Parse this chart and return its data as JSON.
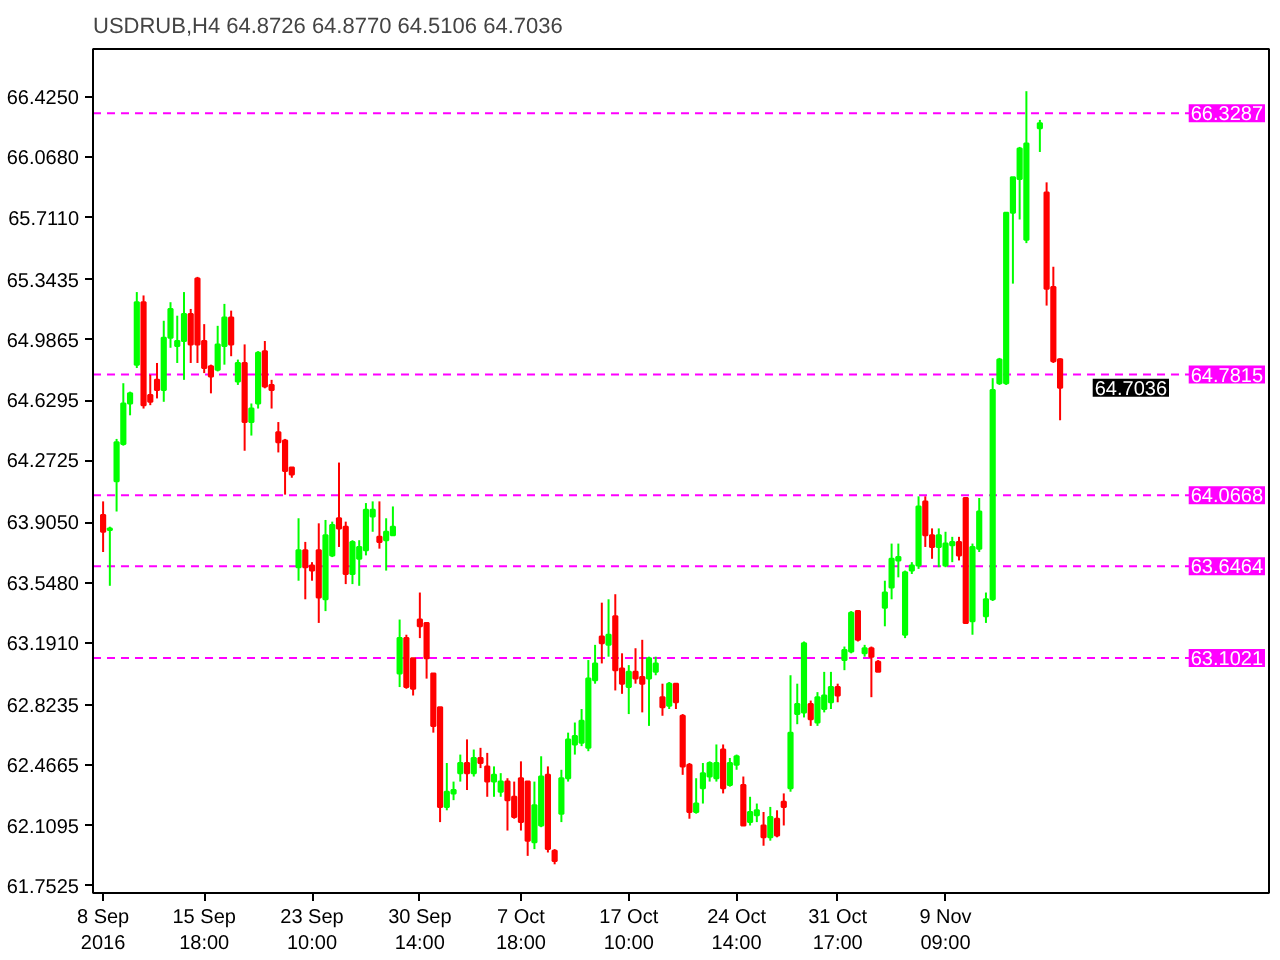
{
  "chart_data": {
    "type": "candlestick",
    "title": "USDRUB,H4 64.8726 64.8770 64.5106 64.7036",
    "categories": [
      "8 Sep 2016",
      null,
      null,
      null,
      null,
      null,
      null,
      null,
      null,
      null,
      null,
      null,
      null,
      null,
      null,
      "15 Sep 18:00",
      null,
      null,
      null,
      null,
      null,
      null,
      null,
      null,
      null,
      null,
      null,
      null,
      null,
      null,
      null,
      "23 Sep 10:00",
      null,
      null,
      null,
      null,
      null,
      null,
      null,
      null,
      null,
      null,
      null,
      null,
      null,
      null,
      null,
      "30 Sep 14:00",
      null,
      null,
      null,
      null,
      null,
      null,
      null,
      null,
      null,
      null,
      null,
      null,
      null,
      null,
      "7 Oct 18:00",
      null,
      null,
      null,
      null,
      null,
      null,
      null,
      null,
      null,
      null,
      null,
      null,
      null,
      null,
      null,
      "17 Oct 10:00",
      null,
      null,
      null,
      null,
      null,
      null,
      null,
      null,
      null,
      null,
      null,
      null,
      null,
      null,
      null,
      "24 Oct 14:00",
      null,
      null,
      null,
      null,
      null,
      null,
      null,
      null,
      null,
      null,
      null,
      null,
      null,
      null,
      "31 Oct 17:00",
      null,
      null,
      null,
      null,
      null,
      null,
      null,
      null,
      null,
      null,
      null,
      null,
      null,
      null,
      null,
      "9 Nov 09:00",
      null,
      null,
      null,
      null,
      null,
      null,
      null,
      null,
      null,
      null,
      null,
      null,
      null,
      null,
      null,
      null,
      null
    ],
    "ohlc": [
      [
        63.95,
        64.03,
        63.73,
        63.85
      ],
      [
        63.86,
        63.88,
        63.53,
        63.87
      ],
      [
        64.15,
        64.4,
        63.97,
        64.38
      ],
      [
        64.37,
        64.73,
        64.36,
        64.61
      ],
      [
        64.61,
        64.68,
        64.54,
        64.67
      ],
      [
        64.84,
        65.27,
        64.82,
        65.21
      ],
      [
        65.21,
        65.25,
        64.58,
        64.6
      ],
      [
        64.66,
        64.78,
        64.6,
        64.62
      ],
      [
        64.75,
        64.85,
        64.64,
        64.69
      ],
      [
        64.69,
        65.1,
        64.62,
        65.0
      ],
      [
        65.0,
        65.21,
        64.94,
        65.17
      ],
      [
        64.95,
        65.13,
        64.85,
        64.98
      ],
      [
        64.98,
        65.27,
        64.75,
        65.14
      ],
      [
        65.14,
        65.17,
        64.85,
        64.96
      ],
      [
        65.35,
        65.36,
        64.85,
        64.96
      ],
      [
        64.98,
        65.08,
        64.79,
        64.82
      ],
      [
        64.83,
        64.84,
        64.67,
        64.77
      ],
      [
        64.81,
        65.07,
        64.8,
        64.96
      ],
      [
        64.95,
        65.2,
        64.84,
        65.12
      ],
      [
        65.12,
        65.16,
        64.89,
        64.96
      ],
      [
        64.74,
        64.87,
        64.72,
        64.85
      ],
      [
        64.85,
        64.96,
        64.33,
        64.5
      ],
      [
        64.5,
        64.61,
        64.42,
        64.58
      ],
      [
        64.61,
        64.92,
        64.58,
        64.91
      ],
      [
        64.92,
        64.98,
        64.7,
        64.71
      ],
      [
        64.72,
        64.75,
        64.58,
        64.69
      ],
      [
        64.44,
        64.5,
        64.32,
        64.38
      ],
      [
        64.39,
        64.4,
        64.07,
        64.21
      ],
      [
        64.23,
        64.23,
        64.17,
        64.19
      ],
      [
        63.64,
        63.93,
        63.56,
        63.74
      ],
      [
        63.74,
        63.79,
        63.45,
        63.64
      ],
      [
        63.65,
        63.67,
        63.56,
        63.62
      ],
      [
        63.74,
        63.9,
        63.31,
        63.46
      ],
      [
        63.45,
        63.92,
        63.38,
        63.83
      ],
      [
        63.71,
        63.91,
        63.7,
        63.89
      ],
      [
        63.93,
        64.26,
        63.76,
        63.87
      ],
      [
        63.88,
        63.91,
        63.54,
        63.6
      ],
      [
        63.6,
        63.8,
        63.54,
        63.79
      ],
      [
        63.69,
        63.8,
        63.53,
        63.76
      ],
      [
        63.74,
        64.02,
        63.71,
        63.98
      ],
      [
        63.94,
        64.03,
        63.85,
        63.98
      ],
      [
        63.82,
        64.03,
        63.75,
        63.79
      ],
      [
        63.8,
        63.93,
        63.62,
        63.85
      ],
      [
        63.83,
        64.0,
        63.83,
        63.88
      ],
      [
        63.01,
        63.33,
        62.93,
        63.22
      ],
      [
        63.22,
        63.24,
        62.92,
        62.93
      ],
      [
        63.1,
        63.1,
        62.88,
        62.92
      ],
      [
        63.33,
        63.49,
        63.22,
        63.29
      ],
      [
        63.31,
        63.31,
        62.98,
        63.1
      ],
      [
        63.01,
        63.01,
        62.66,
        62.7
      ],
      [
        62.81,
        62.81,
        62.13,
        62.22
      ],
      [
        62.22,
        62.48,
        62.2,
        62.31
      ],
      [
        62.3,
        62.37,
        62.26,
        62.32
      ],
      [
        62.42,
        62.53,
        62.37,
        62.48
      ],
      [
        62.48,
        62.62,
        62.32,
        62.42
      ],
      [
        62.42,
        62.56,
        62.4,
        62.51
      ],
      [
        62.51,
        62.57,
        62.45,
        62.48
      ],
      [
        62.46,
        62.54,
        62.28,
        62.37
      ],
      [
        62.37,
        62.46,
        62.28,
        62.41
      ],
      [
        62.31,
        62.42,
        62.28,
        62.37
      ],
      [
        62.37,
        62.39,
        62.08,
        62.26
      ],
      [
        62.28,
        62.37,
        62.15,
        62.16
      ],
      [
        62.39,
        62.49,
        62.08,
        62.13
      ],
      [
        62.37,
        62.37,
        61.93,
        62.02
      ],
      [
        62.01,
        62.37,
        61.97,
        62.23
      ],
      [
        62.11,
        62.52,
        62.1,
        62.4
      ],
      [
        62.41,
        62.46,
        61.95,
        61.97
      ],
      [
        61.96,
        61.97,
        61.88,
        61.9
      ],
      [
        62.18,
        62.44,
        62.13,
        62.39
      ],
      [
        62.39,
        62.66,
        62.37,
        62.62
      ],
      [
        62.59,
        62.72,
        62.53,
        62.64
      ],
      [
        62.6,
        62.8,
        62.58,
        62.73
      ],
      [
        62.57,
        63.09,
        62.55,
        62.98
      ],
      [
        62.97,
        63.18,
        62.95,
        63.07
      ],
      [
        63.23,
        63.43,
        63.07,
        63.19
      ],
      [
        63.18,
        63.45,
        63.11,
        63.24
      ],
      [
        63.35,
        63.48,
        62.91,
        63.03
      ],
      [
        63.04,
        63.13,
        62.89,
        62.95
      ],
      [
        62.93,
        63.06,
        62.77,
        63.02
      ],
      [
        63.02,
        63.16,
        62.95,
        62.98
      ],
      [
        62.99,
        63.21,
        62.78,
        62.95
      ],
      [
        62.98,
        63.11,
        62.7,
        63.1
      ],
      [
        63.02,
        63.11,
        63.0,
        63.07
      ],
      [
        62.87,
        62.95,
        62.76,
        62.81
      ],
      [
        62.82,
        62.96,
        62.8,
        62.95
      ],
      [
        62.95,
        62.95,
        62.8,
        62.84
      ],
      [
        62.76,
        62.77,
        62.41,
        62.46
      ],
      [
        62.47,
        62.48,
        62.15,
        62.19
      ],
      [
        62.19,
        62.39,
        62.18,
        62.24
      ],
      [
        62.33,
        62.48,
        62.24,
        62.42
      ],
      [
        62.4,
        62.49,
        62.37,
        62.48
      ],
      [
        62.39,
        62.59,
        62.37,
        62.48
      ],
      [
        62.56,
        62.59,
        62.3,
        62.33
      ],
      [
        62.35,
        62.51,
        62.34,
        62.48
      ],
      [
        62.47,
        62.53,
        62.44,
        62.52
      ],
      [
        62.35,
        62.4,
        62.11,
        62.11
      ],
      [
        62.13,
        62.28,
        62.11,
        62.19
      ],
      [
        62.17,
        62.24,
        62.13,
        62.2
      ],
      [
        62.11,
        62.19,
        61.99,
        62.04
      ],
      [
        62.04,
        62.22,
        62.02,
        62.16
      ],
      [
        62.15,
        62.2,
        62.04,
        62.05
      ],
      [
        62.25,
        62.3,
        62.11,
        62.22
      ],
      [
        62.33,
        63.0,
        62.31,
        62.66
      ],
      [
        62.77,
        62.95,
        62.71,
        62.83
      ],
      [
        62.78,
        63.2,
        62.75,
        63.19
      ],
      [
        62.83,
        62.85,
        62.7,
        62.74
      ],
      [
        62.72,
        62.9,
        62.7,
        62.87
      ],
      [
        62.8,
        63.02,
        62.78,
        62.88
      ],
      [
        62.84,
        63.02,
        62.8,
        62.93
      ],
      [
        62.93,
        62.95,
        62.84,
        62.88
      ],
      [
        63.09,
        63.17,
        63.03,
        63.15
      ],
      [
        63.14,
        63.38,
        63.13,
        63.37
      ],
      [
        63.38,
        63.38,
        63.2,
        63.21
      ],
      [
        63.13,
        63.18,
        63.11,
        63.16
      ],
      [
        63.16,
        63.17,
        62.87,
        63.11
      ],
      [
        63.08,
        63.09,
        63.02,
        63.02
      ],
      [
        63.4,
        63.56,
        63.29,
        63.49
      ],
      [
        63.52,
        63.78,
        63.45,
        63.69
      ],
      [
        63.68,
        63.78,
        63.58,
        63.7
      ],
      [
        63.24,
        63.62,
        63.22,
        63.61
      ],
      [
        63.62,
        63.67,
        63.6,
        63.65
      ],
      [
        63.65,
        64.06,
        63.63,
        64.0
      ],
      [
        64.03,
        64.06,
        63.76,
        63.83
      ],
      [
        63.83,
        63.87,
        63.69,
        63.76
      ],
      [
        63.76,
        63.87,
        63.64,
        63.83
      ],
      [
        63.65,
        63.85,
        63.64,
        63.78
      ],
      [
        63.77,
        63.82,
        63.67,
        63.79
      ],
      [
        63.79,
        63.82,
        63.68,
        63.71
      ],
      [
        64.05,
        64.05,
        63.31,
        63.31
      ],
      [
        63.32,
        63.78,
        63.24,
        63.76
      ],
      [
        63.75,
        64.05,
        63.73,
        63.97
      ],
      [
        63.35,
        63.49,
        63.31,
        63.45
      ],
      [
        63.45,
        64.76,
        63.44,
        64.69
      ],
      [
        64.73,
        64.88,
        64.72,
        64.87
      ],
      [
        64.73,
        65.74,
        64.72,
        65.74
      ],
      [
        65.74,
        65.95,
        65.32,
        65.95
      ],
      [
        65.94,
        66.13,
        65.7,
        66.12
      ],
      [
        65.58,
        66.46,
        65.56,
        66.15
      ],
      null,
      [
        66.24,
        66.29,
        66.1,
        66.27
      ],
      [
        65.86,
        65.92,
        65.19,
        65.29
      ],
      [
        65.3,
        65.42,
        64.85,
        64.86
      ],
      [
        64.8726,
        64.877,
        64.5106,
        64.7036
      ]
    ],
    "colors": [
      "#ff0000",
      "#00ff00",
      "#00ff00",
      "#00ff00",
      "#00ff00",
      "#00ff00",
      "#ff0000",
      "#ff0000",
      "#ff0000",
      "#00ff00",
      "#00ff00",
      "#00ff00",
      "#00ff00",
      "#ff0000",
      "#ff0000",
      "#ff0000",
      "#ff0000",
      "#00ff00",
      "#00ff00",
      "#ff0000",
      "#00ff00",
      "#ff0000",
      "#00ff00",
      "#00ff00",
      "#ff0000",
      "#ff0000",
      "#ff0000",
      "#ff0000",
      "#ff0000",
      "#00ff00",
      "#ff0000",
      "#ff0000",
      "#ff0000",
      "#00ff00",
      "#00ff00",
      "#ff0000",
      "#ff0000",
      "#00ff00",
      "#00ff00",
      "#00ff00",
      "#00ff00",
      "#ff0000",
      "#00ff00",
      "#00ff00",
      "#00ff00",
      "#ff0000",
      "#ff0000",
      "#ff0000",
      "#ff0000",
      "#ff0000",
      "#ff0000",
      "#00ff00",
      "#00ff00",
      "#00ff00",
      "#ff0000",
      "#00ff00",
      "#ff0000",
      "#ff0000",
      "#00ff00",
      "#00ff00",
      "#ff0000",
      "#ff0000",
      "#ff0000",
      "#ff0000",
      "#00ff00",
      "#00ff00",
      "#ff0000",
      "#ff0000",
      "#00ff00",
      "#00ff00",
      "#00ff00",
      "#00ff00",
      "#00ff00",
      "#00ff00",
      "#ff0000",
      "#00ff00",
      "#ff0000",
      "#ff0000",
      "#00ff00",
      "#ff0000",
      "#ff0000",
      "#00ff00",
      "#00ff00",
      "#ff0000",
      "#00ff00",
      "#ff0000",
      "#ff0000",
      "#ff0000",
      "#00ff00",
      "#00ff00",
      "#00ff00",
      "#00ff00",
      "#ff0000",
      "#00ff00",
      "#00ff00",
      "#ff0000",
      "#00ff00",
      "#00ff00",
      "#ff0000",
      "#00ff00",
      "#ff0000",
      "#ff0000",
      "#00ff00",
      "#00ff00",
      "#00ff00",
      "#ff0000",
      "#00ff00",
      "#00ff00",
      "#00ff00",
      "#ff0000",
      "#00ff00",
      "#00ff00",
      "#ff0000",
      "#00ff00",
      "#ff0000",
      "#ff0000",
      "#00ff00",
      "#00ff00",
      "#00ff00",
      "#00ff00",
      "#00ff00",
      "#00ff00",
      "#ff0000",
      "#ff0000",
      "#00ff00",
      "#00ff00",
      "#00ff00",
      "#ff0000",
      "#ff0000",
      "#00ff00",
      "#00ff00",
      "#00ff00",
      "#00ff00",
      "#00ff00",
      "#00ff00",
      "#00ff00",
      "#00ff00",
      "#00ff00",
      null,
      "#00ff00",
      "#ff0000",
      "#ff0000",
      "#ff0000"
    ],
    "ylim": [
      61.71,
      66.71
    ],
    "yticks": [
      {
        "value": 61.7525,
        "label": "61.7525"
      },
      {
        "value": 62.1095,
        "label": "62.1095"
      },
      {
        "value": 62.4665,
        "label": "62.4665"
      },
      {
        "value": 62.8235,
        "label": "62.8235"
      },
      {
        "value": 63.191,
        "label": "63.1910"
      },
      {
        "value": 63.548,
        "label": "63.5480"
      },
      {
        "value": 63.905,
        "label": "63.9050"
      },
      {
        "value": 64.2725,
        "label": "64.2725"
      },
      {
        "value": 64.6295,
        "label": "64.6295"
      },
      {
        "value": 64.9865,
        "label": "64.9865"
      },
      {
        "value": 65.3435,
        "label": "65.3435"
      },
      {
        "value": 65.711,
        "label": "65.7110"
      },
      {
        "value": 66.068,
        "label": "66.0680"
      },
      {
        "value": 66.425,
        "label": "66.4250"
      }
    ],
    "ref_lines": [
      {
        "axis": "y",
        "value": 66.3287,
        "label": "66.3287",
        "color": "#ff00ff",
        "line_style": "dashed"
      },
      {
        "axis": "y",
        "value": 64.7815,
        "label": "64.7815",
        "color": "#ff00ff",
        "line_style": "dashed"
      },
      {
        "axis": "y",
        "value": 64.0668,
        "label": "64.0668",
        "color": "#ff00ff",
        "line_style": "dashed"
      },
      {
        "axis": "y",
        "value": 63.6464,
        "label": "63.6464",
        "color": "#ff00ff",
        "line_style": "dashed"
      },
      {
        "axis": "y",
        "value": 63.1021,
        "label": "63.1021",
        "color": "#ff00ff",
        "line_style": "dashed"
      }
    ],
    "annotations": [
      "64.7036"
    ]
  }
}
